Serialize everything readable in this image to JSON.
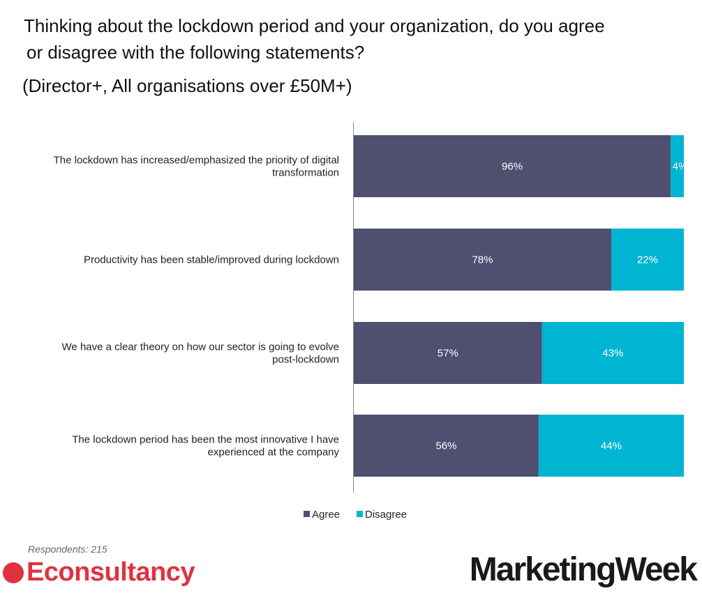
{
  "title_lines": [
    "Thinking about the lockdown period and your organization, do you agree",
    "or disagree with the following statements?",
    "(Director+, All organisations over £50M+)"
  ],
  "footer": {
    "respondents": "Respondents: 215",
    "logo_left": "Econsultancy",
    "logo_right": "MarketingWeek"
  },
  "colors": {
    "agree": "#4f4f70",
    "disagree": "#00b5d1"
  },
  "chart_data": {
    "type": "bar",
    "orientation": "horizontal-stacked-100",
    "title": "Thinking about the lockdown period and your organization, do you agree or disagree with the following statements? (Director+, All organisations over £50M+)",
    "categories": [
      [
        "The lockdown has increased/emphasized the priority of digital",
        "transformation"
      ],
      [
        "Productivity has been stable/improved during lockdown"
      ],
      [
        "We have a clear theory on how our sector is going to evolve",
        "post-lockdown"
      ],
      [
        "The lockdown period has been the most innovative I have",
        "experienced at the company"
      ]
    ],
    "series": [
      {
        "name": "Agree",
        "values": [
          96,
          78,
          57,
          56
        ],
        "labels": [
          "96%",
          "78%",
          "57%",
          "56%"
        ]
      },
      {
        "name": "Disagree",
        "values": [
          4,
          22,
          43,
          44
        ],
        "labels": [
          "4%",
          "22%",
          "43%",
          "44%"
        ]
      }
    ],
    "xlim": [
      0,
      100
    ],
    "legend": "bottom-center",
    "grid": false
  }
}
